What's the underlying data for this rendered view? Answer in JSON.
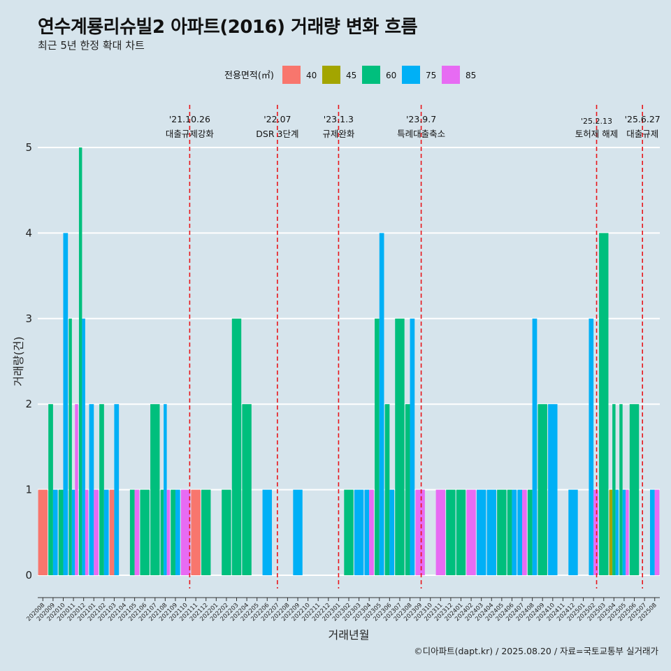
{
  "chart_data": {
    "type": "bar",
    "title": "연수계룡리슈빌2 아파트(2016) 거래량 변화 흐름",
    "subtitle": "최근 5년 한정 확대 차트",
    "xlabel": "거래년월",
    "ylabel": "거래량(건)",
    "ylim": [
      0,
      5.2
    ],
    "y_ticks": [
      0,
      1,
      2,
      3,
      4,
      5
    ],
    "legend": {
      "title": "전용면적(㎡)",
      "placement": "top",
      "items": [
        {
          "name": "40",
          "color": "#f8766d"
        },
        {
          "name": "45",
          "color": "#a3a500"
        },
        {
          "name": "60",
          "color": "#00bf7d"
        },
        {
          "name": "75",
          "color": "#00b0f6"
        },
        {
          "name": "85",
          "color": "#e76bf3"
        }
      ]
    },
    "months": [
      "202008",
      "202009",
      "202010",
      "202011",
      "202012",
      "202101",
      "202102",
      "202103",
      "202104",
      "202105",
      "202106",
      "202107",
      "202108",
      "202109",
      "202110",
      "202111",
      "202112",
      "202201",
      "202202",
      "202203",
      "202204",
      "202205",
      "202206",
      "202207",
      "202208",
      "202209",
      "202210",
      "202211",
      "202212",
      "202301",
      "202302",
      "202303",
      "202304",
      "202305",
      "202306",
      "202307",
      "202308",
      "202309",
      "202310",
      "202311",
      "202312",
      "202401",
      "202402",
      "202403",
      "202404",
      "202405",
      "202406",
      "202407",
      "202408",
      "202409",
      "202410",
      "202411",
      "202412",
      "202501",
      "202502",
      "202503",
      "202504",
      "202505",
      "202506",
      "202507",
      "202508"
    ],
    "bars": [
      {
        "month": "202008",
        "series": "40",
        "value": 1
      },
      {
        "month": "202009",
        "series": "60",
        "value": 2
      },
      {
        "month": "202009",
        "series": "75",
        "value": 1
      },
      {
        "month": "202010",
        "series": "60",
        "value": 1
      },
      {
        "month": "202010",
        "series": "75",
        "value": 4
      },
      {
        "month": "202011",
        "series": "60",
        "value": 3
      },
      {
        "month": "202011",
        "series": "75",
        "value": 1
      },
      {
        "month": "202011",
        "series": "85",
        "value": 2
      },
      {
        "month": "202012",
        "series": "60",
        "value": 5
      },
      {
        "month": "202012",
        "series": "75",
        "value": 3
      },
      {
        "month": "202012",
        "series": "85",
        "value": 1
      },
      {
        "month": "202101",
        "series": "75",
        "value": 2
      },
      {
        "month": "202101",
        "series": "85",
        "value": 1
      },
      {
        "month": "202102",
        "series": "60",
        "value": 2
      },
      {
        "month": "202102",
        "series": "75",
        "value": 1
      },
      {
        "month": "202103",
        "series": "40",
        "value": 1
      },
      {
        "month": "202103",
        "series": "75",
        "value": 2
      },
      {
        "month": "202105",
        "series": "60",
        "value": 1
      },
      {
        "month": "202105",
        "series": "85",
        "value": 1
      },
      {
        "month": "202106",
        "series": "60",
        "value": 1
      },
      {
        "month": "202107",
        "series": "60",
        "value": 2
      },
      {
        "month": "202108",
        "series": "60",
        "value": 1
      },
      {
        "month": "202108",
        "series": "75",
        "value": 2
      },
      {
        "month": "202108",
        "series": "85",
        "value": 1
      },
      {
        "month": "202109",
        "series": "60",
        "value": 1
      },
      {
        "month": "202109",
        "series": "75",
        "value": 1
      },
      {
        "month": "202110",
        "series": "85",
        "value": 1
      },
      {
        "month": "202111",
        "series": "40",
        "value": 1
      },
      {
        "month": "202112",
        "series": "60",
        "value": 1
      },
      {
        "month": "202202",
        "series": "60",
        "value": 1
      },
      {
        "month": "202203",
        "series": "60",
        "value": 3
      },
      {
        "month": "202204",
        "series": "60",
        "value": 2
      },
      {
        "month": "202206",
        "series": "75",
        "value": 1
      },
      {
        "month": "202209",
        "series": "75",
        "value": 1
      },
      {
        "month": "202302",
        "series": "60",
        "value": 1
      },
      {
        "month": "202303",
        "series": "75",
        "value": 1
      },
      {
        "month": "202304",
        "series": "75",
        "value": 1
      },
      {
        "month": "202304",
        "series": "85",
        "value": 1
      },
      {
        "month": "202305",
        "series": "60",
        "value": 3
      },
      {
        "month": "202305",
        "series": "75",
        "value": 4
      },
      {
        "month": "202306",
        "series": "60",
        "value": 2
      },
      {
        "month": "202306",
        "series": "75",
        "value": 1
      },
      {
        "month": "202307",
        "series": "60",
        "value": 3
      },
      {
        "month": "202308",
        "series": "60",
        "value": 2
      },
      {
        "month": "202308",
        "series": "75",
        "value": 3
      },
      {
        "month": "202309",
        "series": "85",
        "value": 1
      },
      {
        "month": "202311",
        "series": "85",
        "value": 1
      },
      {
        "month": "202312",
        "series": "60",
        "value": 1
      },
      {
        "month": "202401",
        "series": "60",
        "value": 1
      },
      {
        "month": "202402",
        "series": "85",
        "value": 1
      },
      {
        "month": "202403",
        "series": "75",
        "value": 1
      },
      {
        "month": "202404",
        "series": "75",
        "value": 1
      },
      {
        "month": "202405",
        "series": "60",
        "value": 1
      },
      {
        "month": "202406",
        "series": "60",
        "value": 1
      },
      {
        "month": "202406",
        "series": "75",
        "value": 1
      },
      {
        "month": "202407",
        "series": "75",
        "value": 1
      },
      {
        "month": "202407",
        "series": "85",
        "value": 1
      },
      {
        "month": "202408",
        "series": "60",
        "value": 1
      },
      {
        "month": "202408",
        "series": "75",
        "value": 3
      },
      {
        "month": "202409",
        "series": "60",
        "value": 2
      },
      {
        "month": "202410",
        "series": "75",
        "value": 2
      },
      {
        "month": "202412",
        "series": "75",
        "value": 1
      },
      {
        "month": "202502",
        "series": "75",
        "value": 3
      },
      {
        "month": "202502",
        "series": "85",
        "value": 1
      },
      {
        "month": "202503",
        "series": "60",
        "value": 4
      },
      {
        "month": "202504",
        "series": "45",
        "value": 1
      },
      {
        "month": "202504",
        "series": "60",
        "value": 2
      },
      {
        "month": "202504",
        "series": "75",
        "value": 1
      },
      {
        "month": "202505",
        "series": "60",
        "value": 2
      },
      {
        "month": "202505",
        "series": "75",
        "value": 1
      },
      {
        "month": "202505",
        "series": "85",
        "value": 1
      },
      {
        "month": "202506",
        "series": "60",
        "value": 2
      },
      {
        "month": "202508",
        "series": "75",
        "value": 1
      },
      {
        "month": "202508",
        "series": "85",
        "value": 1
      }
    ],
    "events": [
      {
        "date": "'21.10.26",
        "label": "대출규제강화",
        "month": "202110",
        "offset": 0.4
      },
      {
        "date": "'22.07",
        "label": "DSR 3단계",
        "month": "202207",
        "offset": 0.0
      },
      {
        "date": "'23.1.3",
        "label": "규제완화",
        "month": "202301",
        "offset": 0.0
      },
      {
        "date": "'23.9.7",
        "label": "특례대출축소",
        "month": "202309",
        "offset": 0.1
      },
      {
        "date": "'25.2.13",
        "label": "토허제 해제",
        "month": "202502",
        "offset": 0.3
      },
      {
        "date": "'25.6.27",
        "label": "대출규제",
        "month": "202506",
        "offset": 0.8
      }
    ],
    "grid": true
  },
  "caption": "©디아파트(dapt.kr) / 2025.08.20 / 자료=국토교통부 실거래가"
}
